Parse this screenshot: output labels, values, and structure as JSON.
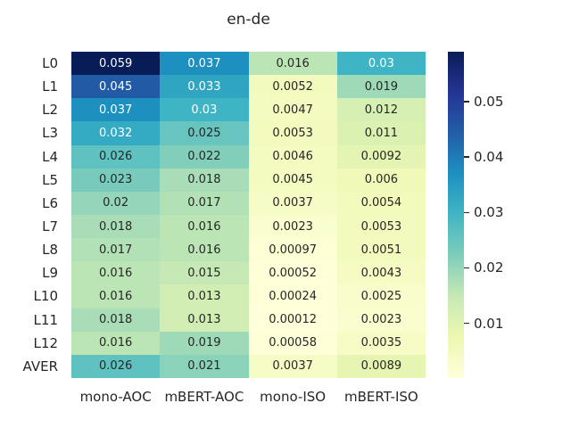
{
  "title": "en-de",
  "text_color": "#262626",
  "background_color": "#ffffff",
  "chart_data": {
    "type": "heatmap",
    "title": "en-de",
    "rows": [
      "L0",
      "L1",
      "L2",
      "L3",
      "L4",
      "L5",
      "L6",
      "L7",
      "L8",
      "L9",
      "L10",
      "L11",
      "L12",
      "AVER"
    ],
    "columns": [
      "mono-AOC",
      "mBERT-AOC",
      "mono-ISO",
      "mBERT-ISO"
    ],
    "values": [
      [
        0.059,
        0.037,
        0.016,
        0.03
      ],
      [
        0.045,
        0.033,
        0.0052,
        0.019
      ],
      [
        0.037,
        0.03,
        0.0047,
        0.012
      ],
      [
        0.032,
        0.025,
        0.0053,
        0.011
      ],
      [
        0.026,
        0.022,
        0.0046,
        0.0092
      ],
      [
        0.023,
        0.018,
        0.0045,
        0.006
      ],
      [
        0.02,
        0.017,
        0.0037,
        0.0054
      ],
      [
        0.018,
        0.016,
        0.0023,
        0.0053
      ],
      [
        0.017,
        0.016,
        0.00097,
        0.0051
      ],
      [
        0.016,
        0.015,
        0.00052,
        0.0043
      ],
      [
        0.016,
        0.013,
        0.00024,
        0.0025
      ],
      [
        0.018,
        0.013,
        0.00012,
        0.0023
      ],
      [
        0.016,
        0.019,
        0.00058,
        0.0035
      ],
      [
        0.026,
        0.021,
        0.0037,
        0.0089
      ]
    ],
    "annotated": true,
    "vmin": 0.00012,
    "vmax": 0.059,
    "colormap": {
      "name": "YlGnBu",
      "stops": [
        "#ffffd9",
        "#edf8b1",
        "#c7e9b4",
        "#7fcdbb",
        "#41b6c4",
        "#1d91c0",
        "#225ea8",
        "#253494",
        "#081d58"
      ]
    },
    "annotation_colors": {
      "dark": "#262626",
      "light": "#ffffff"
    },
    "colorbar": {
      "position": "right",
      "ticks": [
        0.01,
        0.02,
        0.03,
        0.04,
        0.05
      ],
      "tick_labels": [
        "0.01",
        "0.02",
        "0.03",
        "0.04",
        "0.05"
      ]
    },
    "grid": false,
    "legend_position": "none"
  }
}
